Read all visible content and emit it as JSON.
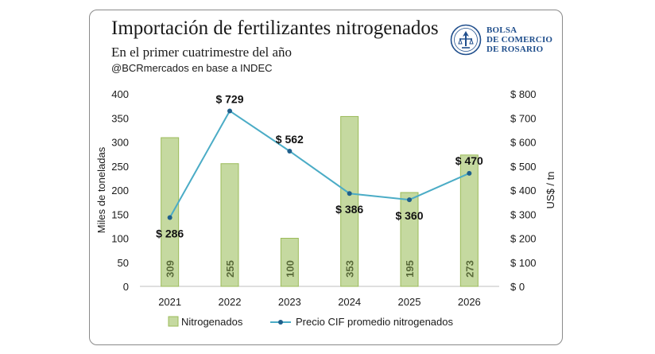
{
  "header": {
    "title": "Importación de fertilizantes nitrogenados",
    "subtitle": "En el primer cuatrimestre del año",
    "source": "@BCRmercados en base a INDEC"
  },
  "logo": {
    "line1": "BOLSA",
    "line2": "DE COMERCIO",
    "line3": "DE ROSARIO",
    "color": "#1f4e8c"
  },
  "chart_data": {
    "type": "bar",
    "categories": [
      "2021",
      "2022",
      "2023",
      "2024",
      "2025",
      "2026"
    ],
    "series": [
      {
        "name": "Nitrogenados",
        "kind": "bar",
        "axis": "left",
        "values": [
          309,
          255,
          100,
          353,
          195,
          273
        ],
        "labels": [
          "309",
          "255",
          "100",
          "353",
          "195",
          "273"
        ],
        "color": "#c5d9a0",
        "border": "#9bbb59"
      },
      {
        "name": "Precio CIF promedio nitrogenados",
        "kind": "line",
        "axis": "right",
        "values": [
          286,
          729,
          562,
          386,
          360,
          470
        ],
        "labels": [
          "$ 286",
          "$ 729",
          "$ 562",
          "$ 386",
          "$ 360",
          "$ 470"
        ],
        "color": "#4bacc6",
        "marker_color": "#1f5f8b"
      }
    ],
    "ylabel": "Miles de toneladas",
    "y2label": "US$ / tn",
    "ylim": [
      0,
      400
    ],
    "y2lim": [
      0,
      800
    ],
    "yticks": [
      "0",
      "50",
      "100",
      "150",
      "200",
      "250",
      "300",
      "350",
      "400"
    ],
    "y2ticks": [
      "$ 0",
      "$ 100",
      "$ 200",
      "$ 300",
      "$ 400",
      "$ 500",
      "$ 600",
      "$ 700",
      "$ 800"
    ],
    "grid": false,
    "legend": "bottom"
  }
}
